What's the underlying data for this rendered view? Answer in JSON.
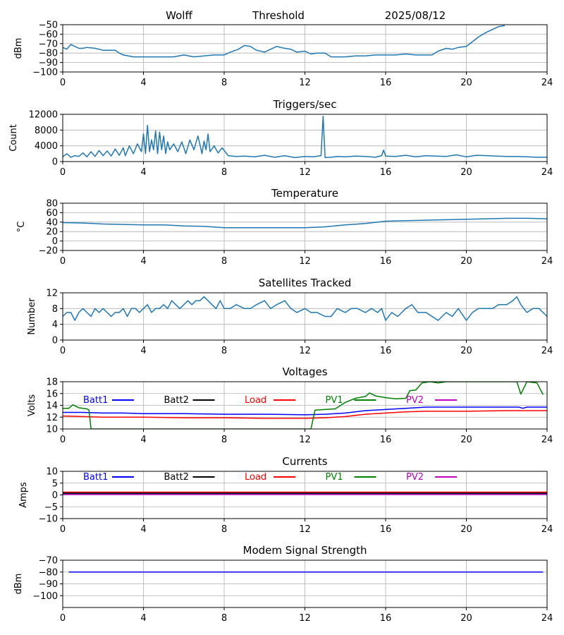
{
  "header": {
    "site": "Wolff",
    "label": "Threshold",
    "date": "2025/08/12"
  },
  "colors": {
    "default": "#1f77b4",
    "grid": "#b0b0b0",
    "axis": "#000000"
  },
  "chart_data": [
    {
      "type": "line",
      "title": "",
      "ylabel": "dBm",
      "xlim": [
        0,
        24
      ],
      "ylim": [
        -100,
        -50
      ],
      "xticks": [
        "0",
        "4",
        "8",
        "12",
        "16",
        "20",
        "24"
      ],
      "yticks": [
        "−100",
        "−90",
        "−80",
        "−70",
        "−60",
        "−50"
      ],
      "grid": true,
      "series": [
        {
          "color": "#1f77b4",
          "x": [
            0,
            0.2,
            0.4,
            0.6,
            0.8,
            1.0,
            1.2,
            1.6,
            2.0,
            2.3,
            2.6,
            2.8,
            3.0,
            3.5,
            4.0,
            4.5,
            5.0,
            5.5,
            6.0,
            6.5,
            7.0,
            7.5,
            8.0,
            8.3,
            8.7,
            9.0,
            9.3,
            9.6,
            10.0,
            10.3,
            10.6,
            11.0,
            11.3,
            11.6,
            12.0,
            12.3,
            12.6,
            13.0,
            13.3,
            13.6,
            14.0,
            14.5,
            15.0,
            15.5,
            16.0,
            16.5,
            17.0,
            17.5,
            18.0,
            18.3,
            18.6,
            19.0,
            19.3,
            19.6,
            20.0,
            20.3,
            20.6,
            21.0,
            21.3,
            21.6,
            21.9
          ],
          "y": [
            -74,
            -76,
            -71,
            -73,
            -75,
            -75,
            -74,
            -75,
            -77,
            -77,
            -77,
            -80,
            -82,
            -84,
            -84,
            -84,
            -84,
            -84,
            -82,
            -84,
            -83,
            -82,
            -82,
            -79,
            -76,
            -72,
            -73,
            -77,
            -79,
            -76,
            -73,
            -75,
            -76,
            -79,
            -78,
            -81,
            -80,
            -80,
            -84,
            -84,
            -84,
            -83,
            -83,
            -82,
            -82,
            -82,
            -81,
            -82,
            -82,
            -82,
            -78,
            -75,
            -76,
            -74,
            -73,
            -68,
            -63,
            -58,
            -55,
            -52,
            -51
          ]
        }
      ]
    },
    {
      "type": "line",
      "title": "Triggers/sec",
      "ylabel": "Count",
      "xlim": [
        0,
        24
      ],
      "ylim": [
        0,
        12000
      ],
      "xticks": [
        "0",
        "4",
        "8",
        "12",
        "16",
        "20",
        "24"
      ],
      "yticks": [
        "0",
        "4000",
        "8000",
        "12000"
      ],
      "grid": true,
      "series": [
        {
          "color": "#1f77b4",
          "x": [
            0,
            0.2,
            0.4,
            0.6,
            0.8,
            1.0,
            1.2,
            1.4,
            1.6,
            1.8,
            2.0,
            2.2,
            2.4,
            2.6,
            2.8,
            3.0,
            3.1,
            3.3,
            3.5,
            3.7,
            3.9,
            4.0,
            4.1,
            4.2,
            4.3,
            4.4,
            4.5,
            4.6,
            4.7,
            4.8,
            4.9,
            5.0,
            5.1,
            5.2,
            5.3,
            5.5,
            5.7,
            5.9,
            6.1,
            6.3,
            6.5,
            6.7,
            6.9,
            7.0,
            7.1,
            7.2,
            7.3,
            7.5,
            7.7,
            7.9,
            8.2,
            8.6,
            9.0,
            9.5,
            10.0,
            10.5,
            11.0,
            11.5,
            12.0,
            12.4,
            12.8,
            12.9,
            13.0,
            13.3,
            13.6,
            14.0,
            14.5,
            15.0,
            15.5,
            15.8,
            15.9,
            16.0,
            16.5,
            17.0,
            17.5,
            18.0,
            18.5,
            19.0,
            19.5,
            20.0,
            20.5,
            21.0,
            21.5,
            22.0,
            22.5,
            23.0,
            23.5,
            24.0
          ],
          "y": [
            1200,
            2000,
            1100,
            1500,
            1300,
            2200,
            1200,
            2500,
            1300,
            2800,
            1500,
            2700,
            1400,
            3200,
            1600,
            3500,
            1500,
            4000,
            2000,
            4500,
            2500,
            7000,
            2000,
            9200,
            2500,
            5500,
            3000,
            7800,
            2000,
            7500,
            3000,
            6500,
            2000,
            5000,
            3000,
            4500,
            2500,
            5000,
            2000,
            5500,
            3000,
            6500,
            2000,
            5200,
            3000,
            7000,
            2500,
            4000,
            2200,
            3500,
            1500,
            1300,
            1400,
            1200,
            1600,
            1100,
            1500,
            1000,
            1300,
            1200,
            1500,
            11500,
            1000,
            1100,
            1300,
            1200,
            1400,
            1300,
            1100,
            1500,
            2900,
            1400,
            1300,
            1600,
            1200,
            1500,
            1400,
            1300,
            1700,
            1200,
            1600,
            1500,
            1400,
            1300,
            1300,
            1200,
            1100,
            1100
          ]
        }
      ]
    },
    {
      "type": "line",
      "title": "Temperature",
      "ylabel": "°C",
      "xlim": [
        0,
        24
      ],
      "ylim": [
        -20,
        80
      ],
      "xticks": [
        "0",
        "4",
        "8",
        "12",
        "16",
        "20",
        "24"
      ],
      "yticks": [
        "−20",
        "0",
        "20",
        "40",
        "60",
        "80"
      ],
      "grid": true,
      "series": [
        {
          "color": "#1f77b4",
          "x": [
            0,
            1,
            2,
            3,
            4,
            5,
            6,
            7,
            8,
            9,
            10,
            11,
            12,
            13,
            14,
            15,
            16,
            17,
            18,
            19,
            20,
            21,
            22,
            23,
            24
          ],
          "y": [
            39,
            38,
            36,
            35,
            34,
            34,
            32,
            31,
            28,
            28,
            28,
            28,
            28,
            30,
            34,
            37,
            42,
            43,
            44,
            45,
            46,
            47,
            48,
            48,
            47
          ]
        }
      ]
    },
    {
      "type": "line",
      "title": "Satellites Tracked",
      "ylabel": "Number",
      "xlim": [
        0,
        24
      ],
      "ylim": [
        0,
        12
      ],
      "xticks": [
        "0",
        "4",
        "8",
        "12",
        "16",
        "20",
        "24"
      ],
      "yticks": [
        "0",
        "4",
        "8",
        "12"
      ],
      "grid": true,
      "series": [
        {
          "color": "#1f77b4",
          "x": [
            0,
            0.2,
            0.4,
            0.6,
            0.8,
            1.0,
            1.2,
            1.4,
            1.6,
            1.8,
            2.0,
            2.2,
            2.4,
            2.6,
            2.8,
            3.0,
            3.2,
            3.4,
            3.6,
            3.8,
            4.0,
            4.2,
            4.4,
            4.6,
            4.8,
            5.0,
            5.2,
            5.4,
            5.6,
            5.8,
            6.0,
            6.2,
            6.4,
            6.6,
            6.8,
            7.0,
            7.2,
            7.4,
            7.6,
            7.8,
            8.0,
            8.3,
            8.6,
            9.0,
            9.3,
            9.6,
            10.0,
            10.3,
            10.6,
            11.0,
            11.3,
            11.6,
            12.0,
            12.3,
            12.6,
            13.0,
            13.3,
            13.6,
            14.0,
            14.3,
            14.6,
            15.0,
            15.3,
            15.6,
            15.8,
            16.0,
            16.3,
            16.6,
            17.0,
            17.3,
            17.6,
            18.0,
            18.3,
            18.6,
            19.0,
            19.3,
            19.6,
            20.0,
            20.3,
            20.6,
            21.0,
            21.3,
            21.6,
            22.0,
            22.3,
            22.5,
            22.7,
            23.0,
            23.3,
            23.6,
            24.0
          ],
          "y": [
            6,
            7,
            7,
            5,
            7,
            8,
            7,
            6,
            8,
            7,
            8,
            7,
            6,
            7,
            7,
            8,
            6,
            8,
            8,
            7,
            8,
            9,
            7,
            8,
            8,
            9,
            8,
            10,
            9,
            8,
            9,
            10,
            9,
            10,
            10,
            11,
            10,
            9,
            8,
            10,
            8,
            8,
            9,
            8,
            8,
            9,
            10,
            8,
            9,
            10,
            8,
            7,
            8,
            7,
            7,
            6,
            6,
            8,
            7,
            8,
            8,
            7,
            8,
            7,
            8,
            5,
            7,
            6,
            8,
            9,
            7,
            7,
            6,
            5,
            7,
            6,
            8,
            5,
            7,
            8,
            8,
            8,
            9,
            9,
            10,
            11,
            9,
            7,
            8,
            8,
            6
          ]
        }
      ]
    },
    {
      "type": "line",
      "title": "Voltages",
      "ylabel": "Volts",
      "xlim": [
        0,
        24
      ],
      "ylim": [
        10,
        18
      ],
      "xticks": [
        "0",
        "4",
        "8",
        "12",
        "16",
        "20",
        "24"
      ],
      "yticks": [
        "10",
        "12",
        "14",
        "16",
        "18"
      ],
      "grid": true,
      "legend_placement": "top",
      "series": [
        {
          "name": "Batt1",
          "color": "#0000ff",
          "x": [
            0,
            1,
            2,
            3,
            4,
            6,
            8,
            10,
            12,
            13,
            14,
            15,
            16,
            17,
            18,
            20,
            22,
            22.6,
            22.8,
            23,
            24
          ],
          "y": [
            12.8,
            12.8,
            12.7,
            12.7,
            12.6,
            12.6,
            12.5,
            12.5,
            12.4,
            12.5,
            12.7,
            13.1,
            13.3,
            13.5,
            13.7,
            13.7,
            13.7,
            13.7,
            13.5,
            13.7,
            13.7
          ]
        },
        {
          "name": "Batt2",
          "color": "#000000",
          "x": [],
          "y": []
        },
        {
          "name": "Load",
          "color": "#ff0000",
          "x": [
            0,
            1,
            2,
            4,
            6,
            8,
            10,
            12,
            13,
            14,
            15,
            16,
            17,
            18,
            20,
            22,
            24
          ],
          "y": [
            12.2,
            12.1,
            12.0,
            12.0,
            11.9,
            11.9,
            11.8,
            11.8,
            11.9,
            12.1,
            12.5,
            12.7,
            12.9,
            13.0,
            13.0,
            13.1,
            13.1
          ]
        },
        {
          "name": "PV1",
          "color": "#008000",
          "x": [
            0,
            0.3,
            0.5,
            0.8,
            1.0,
            1.2,
            1.3,
            1.4,
            12.3,
            12.5,
            13.0,
            13.5,
            14.0,
            14.5,
            15.0,
            15.2,
            15.5,
            16.0,
            16.5,
            17.0,
            17.2,
            17.5,
            17.8,
            18.2,
            18.6,
            19.0,
            19.5,
            20.0,
            20.5,
            21.0,
            21.5,
            22.0,
            22.5,
            22.7,
            23.0,
            23.5,
            23.8
          ],
          "y": [
            13.5,
            13.5,
            14.1,
            13.6,
            13.5,
            13.4,
            13.2,
            10.0,
            10.0,
            13.2,
            13.3,
            13.4,
            14.5,
            15.2,
            15.5,
            16.1,
            15.6,
            15.3,
            15.1,
            15.2,
            16.5,
            16.6,
            17.8,
            18.0,
            17.8,
            18.0,
            18.0,
            18.0,
            18.0,
            18.0,
            18.0,
            18.0,
            18.0,
            15.9,
            18.0,
            17.8,
            15.8
          ]
        },
        {
          "name": "PV2",
          "color": "#c000c0",
          "x": [],
          "y": []
        }
      ]
    },
    {
      "type": "line",
      "title": "Currents",
      "ylabel": "Amps",
      "xlim": [
        0,
        24
      ],
      "ylim": [
        -10,
        10
      ],
      "xticks": [
        "0",
        "4",
        "8",
        "12",
        "16",
        "20",
        "24"
      ],
      "yticks": [
        "−10",
        "−5",
        "0",
        "5",
        "10"
      ],
      "grid": true,
      "legend_placement": "top",
      "series": [
        {
          "name": "Batt1",
          "color": "#0000ff",
          "x": [
            0,
            24
          ],
          "y": [
            0.5,
            0.5
          ]
        },
        {
          "name": "Batt2",
          "color": "#000000",
          "x": [
            0,
            24
          ],
          "y": [
            0.8,
            0.8
          ]
        },
        {
          "name": "Load",
          "color": "#ff0000",
          "x": [
            0,
            24
          ],
          "y": [
            1.2,
            1.2
          ]
        },
        {
          "name": "PV1",
          "color": "#008000",
          "x": [
            0,
            24
          ],
          "y": [
            0.3,
            0.3
          ]
        },
        {
          "name": "PV2",
          "color": "#c000c0",
          "x": [
            0,
            24
          ],
          "y": [
            0.2,
            0.2
          ]
        }
      ]
    },
    {
      "type": "line",
      "title": "Modem Signal Strength",
      "ylabel": "dBm",
      "xlim": [
        0,
        24
      ],
      "ylim": [
        -110,
        -70
      ],
      "xticks": [
        "0",
        "4",
        "8",
        "12",
        "16",
        "20",
        "24"
      ],
      "yticks": [
        "−100",
        "−90",
        "−80",
        "−70"
      ],
      "ytick_values": [
        -100,
        -90,
        -80,
        -70
      ],
      "grid": true,
      "series": [
        {
          "color": "#0000ff",
          "x": [
            0.3,
            23.8
          ],
          "y": [
            -80,
            -80
          ]
        }
      ]
    }
  ]
}
